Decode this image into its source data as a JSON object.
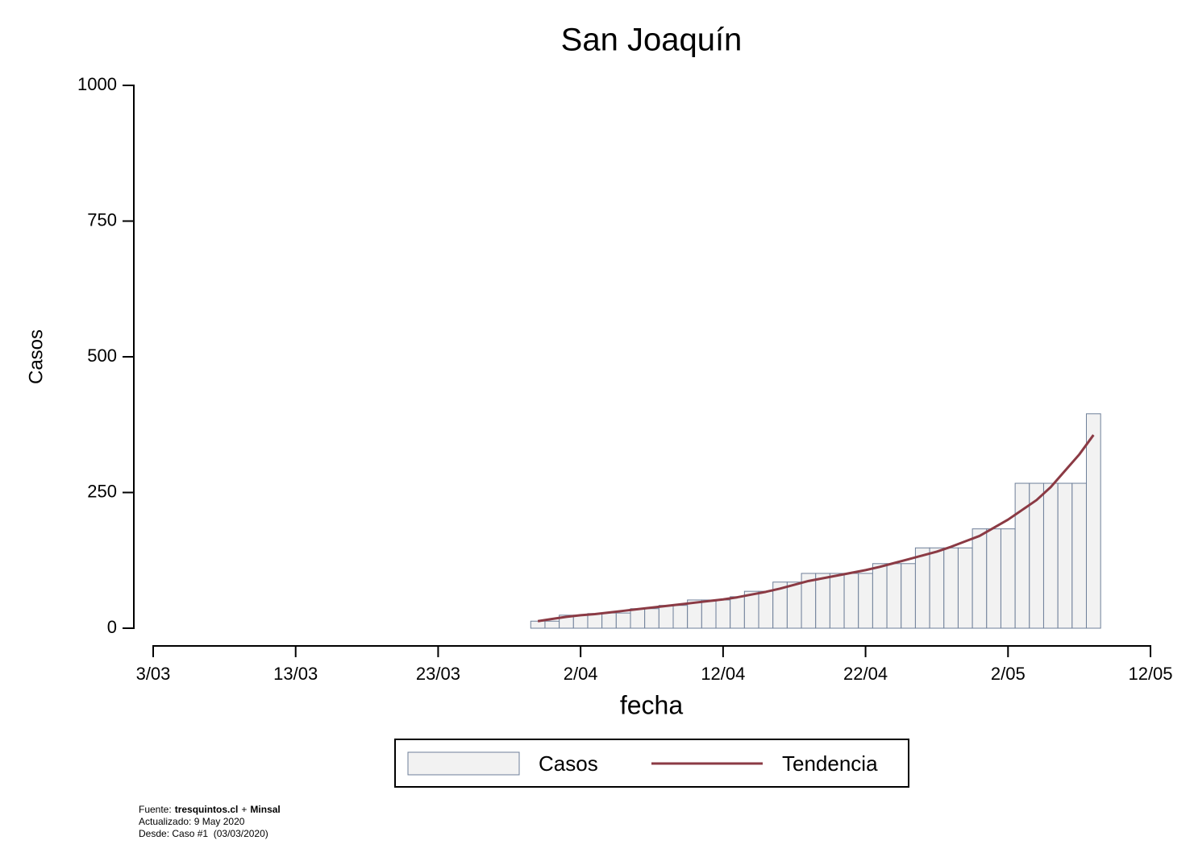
{
  "chart_data": {
    "type": "bar_line",
    "title": "San Joaquín",
    "x_label": "fecha",
    "y_label": "Casos",
    "x": [
      "30/03",
      "31/03",
      "1/04",
      "2/04",
      "3/04",
      "4/04",
      "5/04",
      "6/04",
      "7/04",
      "8/04",
      "9/04",
      "10/04",
      "11/04",
      "12/04",
      "13/04",
      "14/04",
      "15/04",
      "16/04",
      "17/04",
      "18/04",
      "19/04",
      "20/04",
      "21/04",
      "22/04",
      "23/04",
      "24/04",
      "25/04",
      "26/04",
      "27/04",
      "28/04",
      "29/04",
      "30/04",
      "1/05",
      "2/05",
      "3/05",
      "4/05",
      "5/05",
      "6/05",
      "7/05",
      "8/05"
    ],
    "series": [
      {
        "name": "Casos",
        "type": "bar",
        "color": "#f2f2f2",
        "edge_color": "#6e7f99",
        "values": [
          13,
          13,
          24,
          24,
          27,
          28,
          28,
          36,
          36,
          42,
          42,
          52,
          52,
          52,
          58,
          68,
          68,
          85,
          85,
          101,
          101,
          101,
          101,
          101,
          119,
          119,
          119,
          148,
          148,
          148,
          148,
          183,
          183,
          183,
          267,
          267,
          267,
          267,
          267,
          395
        ]
      },
      {
        "name": "Tendencia",
        "type": "line",
        "color": "#8b3a44",
        "values": [
          13,
          17,
          21,
          24,
          26,
          29,
          32,
          35,
          38,
          41,
          44,
          47,
          50,
          53,
          57,
          62,
          67,
          73,
          80,
          87,
          92,
          97,
          102,
          107,
          113,
          120,
          127,
          134,
          141,
          150,
          160,
          170,
          185,
          200,
          218,
          236,
          260,
          290,
          320,
          356
        ]
      }
    ],
    "xlim": [
      "3/03",
      "12/05"
    ],
    "xticks": [
      "3/03",
      "13/03",
      "23/03",
      "2/04",
      "12/04",
      "22/04",
      "2/05",
      "12/05"
    ],
    "ylim": [
      0,
      1000
    ],
    "yticks": [
      0,
      250,
      500,
      750,
      1000
    ],
    "grid": false,
    "legend": "bottom"
  },
  "footer": {
    "source_label": "Fuente:",
    "source_1": "tresquintos.cl",
    "joiner": "+",
    "source_2": "Minsal",
    "updated": "Actualizado: 9 May 2020",
    "since": "Desde: Caso #1  (03/03/2020)"
  }
}
